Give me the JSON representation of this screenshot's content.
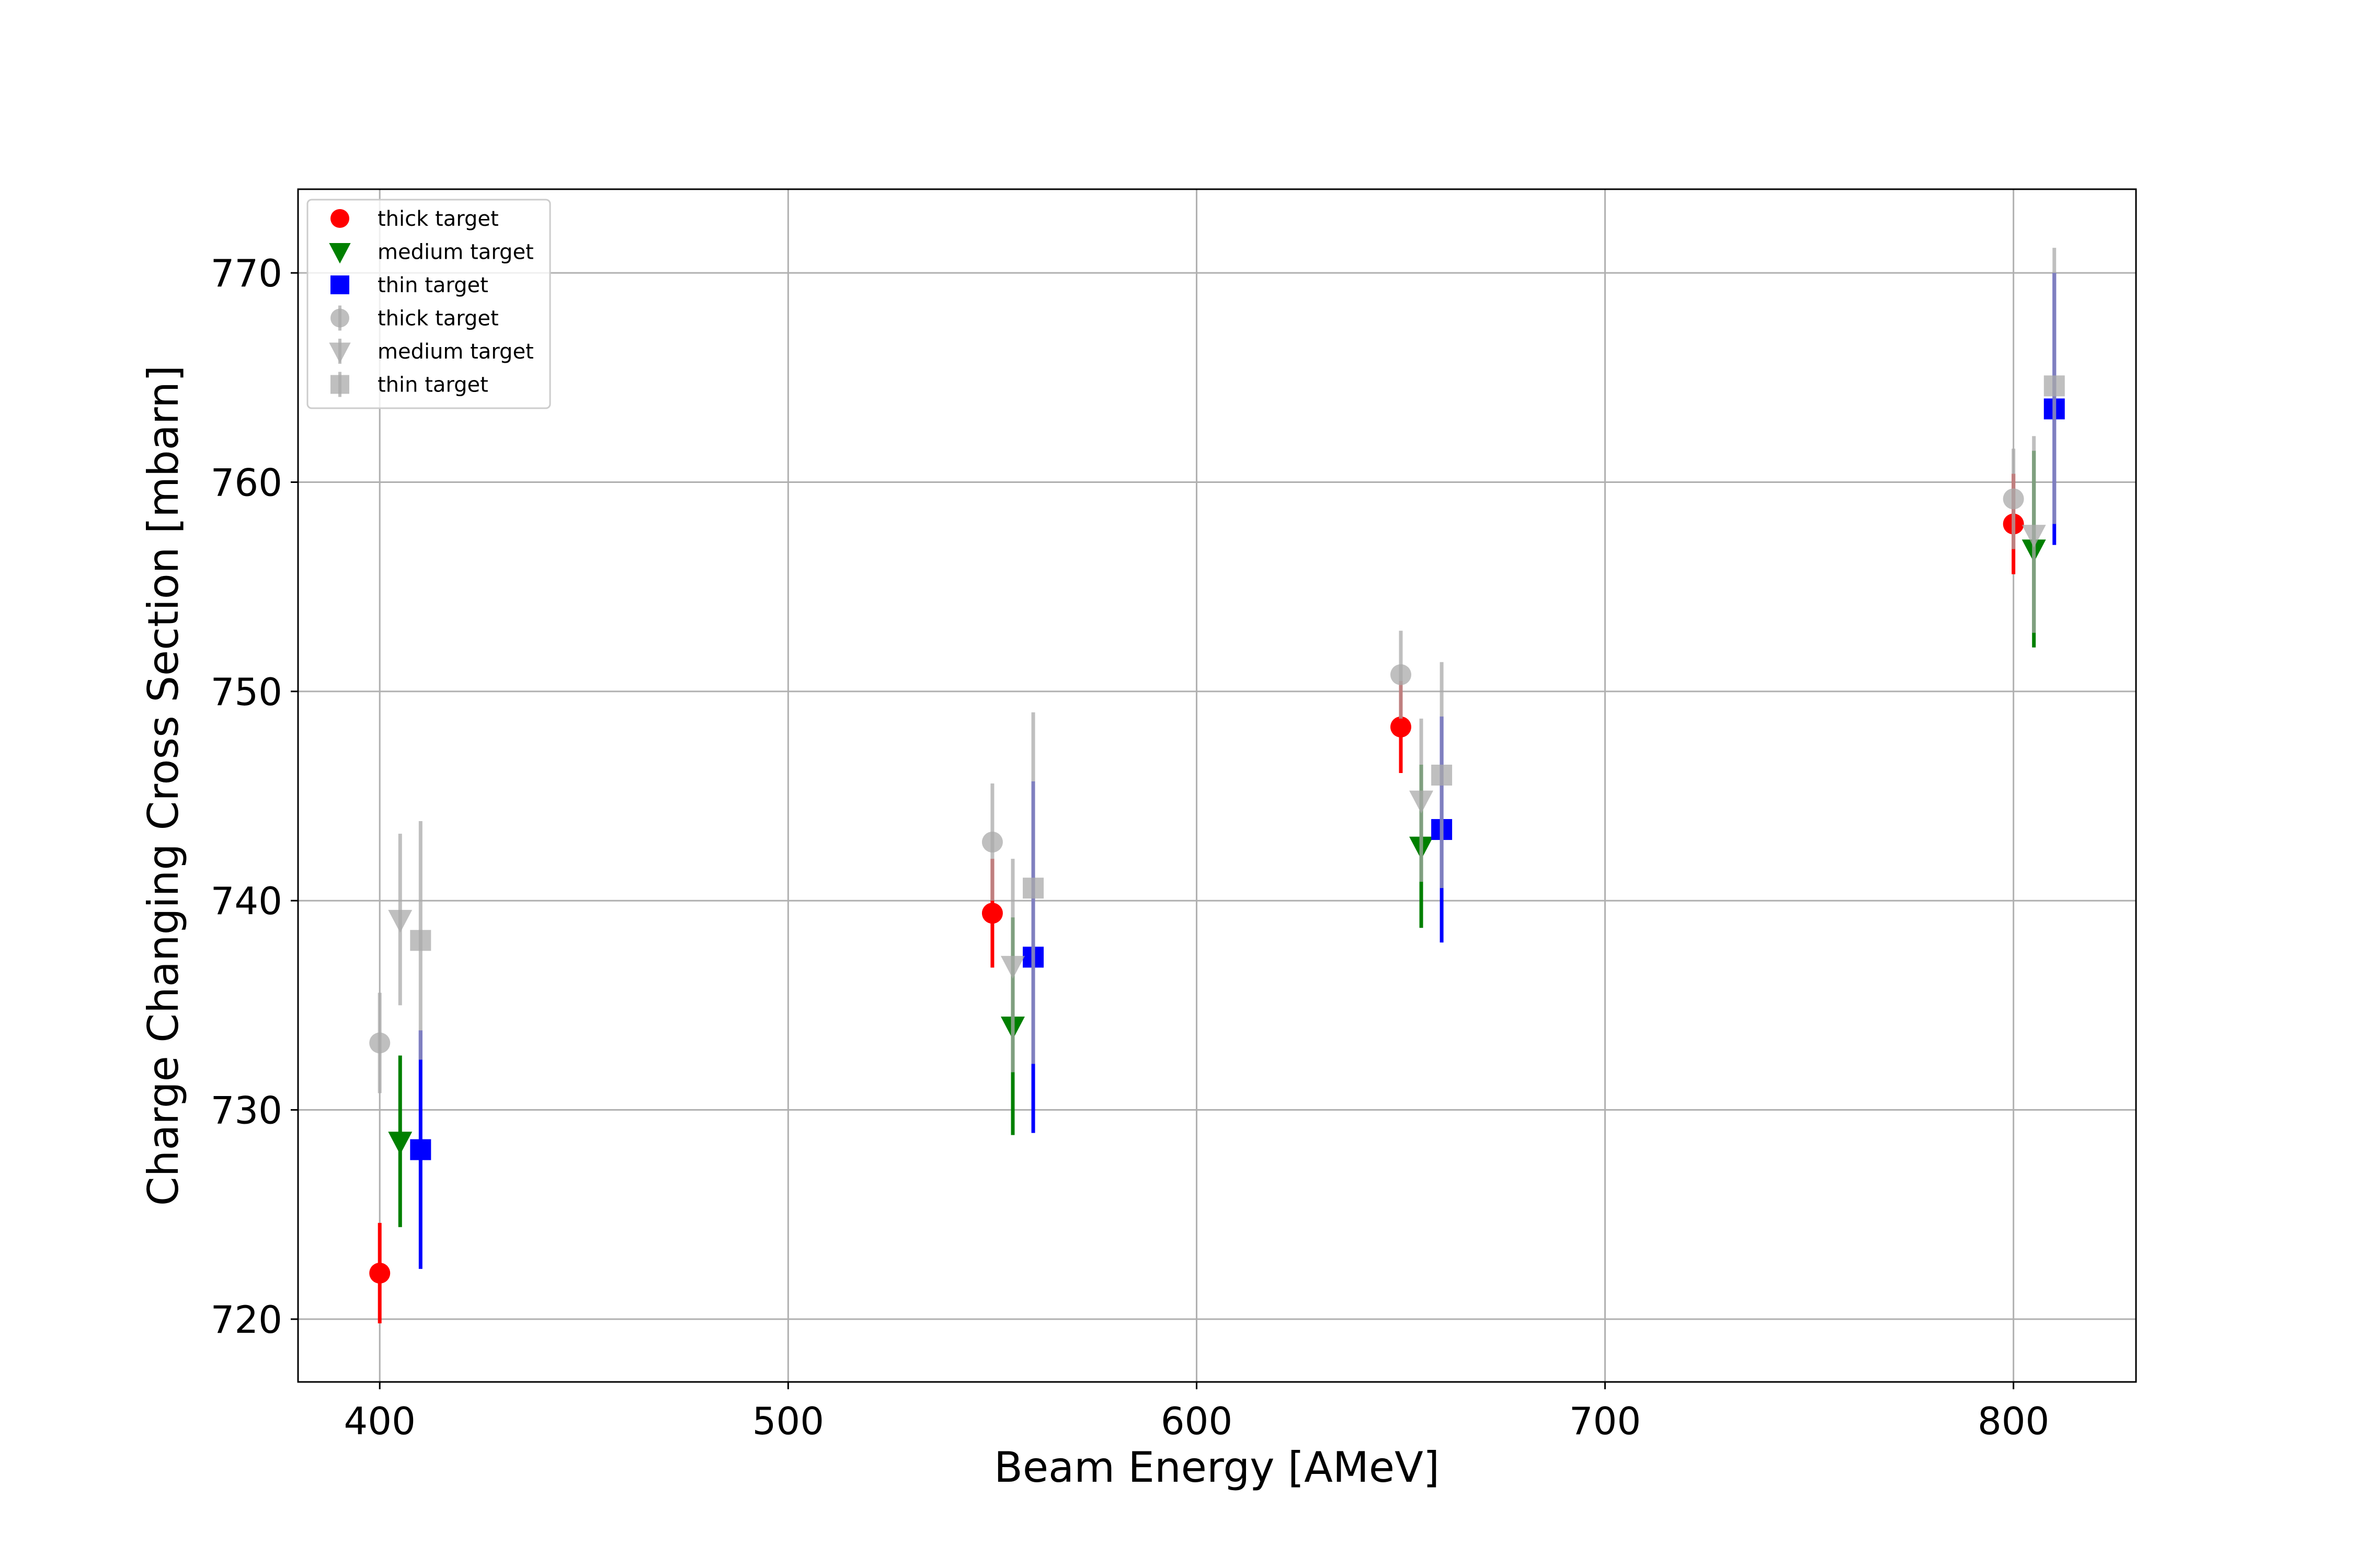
{
  "chart_data": {
    "type": "scatter",
    "title": "",
    "xlabel": "Beam Energy [AMeV]",
    "ylabel": "Charge Changing Cross Section [mbarn]",
    "xlim": [
      380,
      830
    ],
    "ylim": [
      717,
      774
    ],
    "xticks": [
      400,
      500,
      600,
      700,
      800
    ],
    "yticks": [
      720,
      730,
      740,
      750,
      760,
      770
    ],
    "grid": true,
    "legend_position": "top-left",
    "series": [
      {
        "name": "thick target",
        "marker": "circle",
        "color": "#ff0000",
        "points": [
          {
            "x": 400,
            "y": 722.2,
            "err": 2.4
          },
          {
            "x": 550,
            "y": 739.4,
            "err": 2.6
          },
          {
            "x": 650,
            "y": 748.3,
            "err": 2.2
          },
          {
            "x": 800,
            "y": 758.0,
            "err": 2.4
          }
        ]
      },
      {
        "name": "medium target",
        "marker": "triangle-down",
        "color": "#008000",
        "points": [
          {
            "x": 405,
            "y": 728.5,
            "err": 4.1
          },
          {
            "x": 555,
            "y": 734.0,
            "err": 5.2
          },
          {
            "x": 655,
            "y": 742.6,
            "err": 3.9
          },
          {
            "x": 805,
            "y": 756.8,
            "err": 4.7
          }
        ]
      },
      {
        "name": "thin target",
        "marker": "square",
        "color": "#0000ff",
        "points": [
          {
            "x": 410,
            "y": 728.1,
            "err": 5.7
          },
          {
            "x": 560,
            "y": 737.3,
            "err": 8.4
          },
          {
            "x": 660,
            "y": 743.4,
            "err": 5.4
          },
          {
            "x": 810,
            "y": 763.5,
            "err": 6.5
          }
        ]
      },
      {
        "name": "thick target",
        "marker": "circle",
        "color": "#a9a9a9",
        "points": [
          {
            "x": 400,
            "y": 733.2,
            "err": 2.4
          },
          {
            "x": 550,
            "y": 742.8,
            "err": 2.8
          },
          {
            "x": 650,
            "y": 750.8,
            "err": 2.1
          },
          {
            "x": 800,
            "y": 759.2,
            "err": 2.4
          }
        ]
      },
      {
        "name": "medium target",
        "marker": "triangle-down",
        "color": "#a9a9a9",
        "points": [
          {
            "x": 405,
            "y": 739.1,
            "err": 4.1
          },
          {
            "x": 555,
            "y": 736.9,
            "err": 5.1
          },
          {
            "x": 655,
            "y": 744.8,
            "err": 3.9
          },
          {
            "x": 805,
            "y": 757.5,
            "err": 4.7
          }
        ]
      },
      {
        "name": "thin target",
        "marker": "square",
        "color": "#a9a9a9",
        "points": [
          {
            "x": 410,
            "y": 738.1,
            "err": 5.7
          },
          {
            "x": 560,
            "y": 740.6,
            "err": 8.4
          },
          {
            "x": 660,
            "y": 746.0,
            "err": 5.4
          },
          {
            "x": 810,
            "y": 764.6,
            "err": 6.6
          }
        ]
      }
    ]
  }
}
